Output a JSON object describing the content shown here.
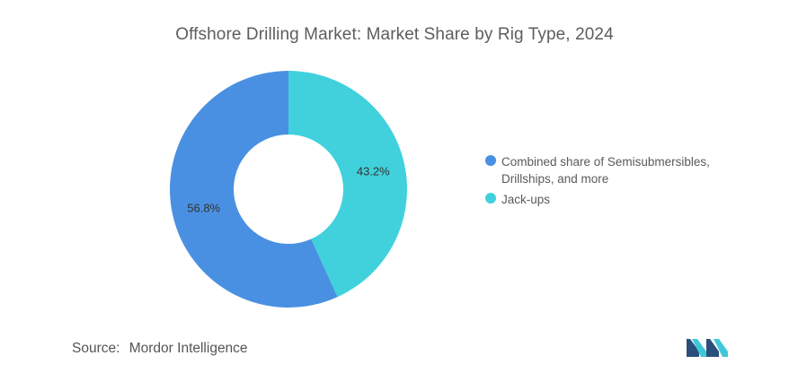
{
  "chart_data": {
    "type": "pie",
    "title": "Offshore Drilling Market: Market Share by Rig Type, 2024",
    "donut": true,
    "slices": [
      {
        "name": "Combined share of Semisubmersibles, Drillships, and more",
        "value": 56.8,
        "label": "56.8%",
        "color": "#4a90e2"
      },
      {
        "name": "Jack-ups",
        "value": 43.2,
        "label": "43.2%",
        "color": "#40d1dc"
      }
    ],
    "legend_position": "right"
  },
  "legend": {
    "items": [
      {
        "label": "Combined share of Semisubmersibles, Drillships, and more",
        "color": "#4a90e2"
      },
      {
        "label": "Jack-ups",
        "color": "#40d1dc"
      }
    ]
  },
  "source": {
    "label": "Source:",
    "text": "Mordor Intelligence"
  },
  "logo": {
    "icon": "mordor-intelligence-logo",
    "colors": [
      "#2a4f7a",
      "#3ec8d8"
    ]
  }
}
